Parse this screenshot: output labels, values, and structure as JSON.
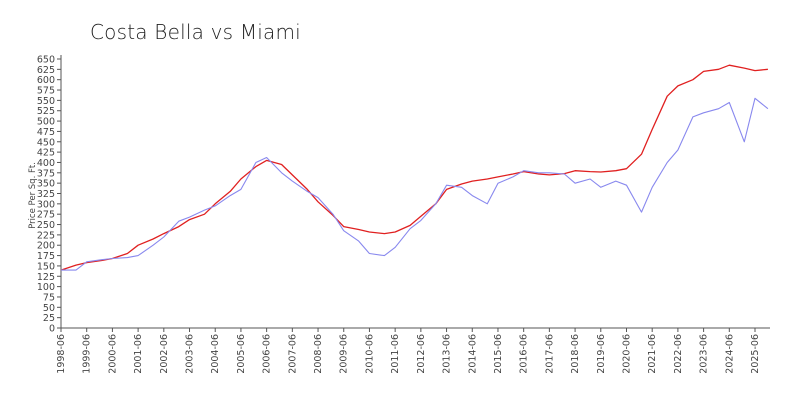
{
  "chart_data": {
    "type": "line",
    "title": "Costa Bella vs Miami",
    "xlabel": "",
    "ylabel": "Price Per Sq. Ft.",
    "ylim": [
      0,
      650
    ],
    "yticks": [
      0,
      25,
      50,
      75,
      100,
      125,
      150,
      175,
      200,
      225,
      250,
      275,
      300,
      325,
      350,
      375,
      400,
      425,
      450,
      475,
      500,
      525,
      550,
      575,
      600,
      625,
      650
    ],
    "xlim": [
      "1998-06",
      "2026-01"
    ],
    "xticks": [
      "1998-06",
      "1999-06",
      "2000-06",
      "2001-06",
      "2002-06",
      "2003-06",
      "2004-06",
      "2005-06",
      "2006-06",
      "2007-06",
      "2008-06",
      "2009-06",
      "2010-06",
      "2011-06",
      "2012-06",
      "2013-06",
      "2014-06",
      "2015-06",
      "2016-06",
      "2017-06",
      "2018-06",
      "2019-06",
      "2020-06",
      "2021-06",
      "2022-06",
      "2023-06",
      "2024-06",
      "2025-06"
    ],
    "grid": false,
    "legend": "none",
    "series": [
      {
        "color": "#e02020",
        "points": [
          [
            "1998-06",
            140
          ],
          [
            "1999-01",
            152
          ],
          [
            "1999-06",
            158
          ],
          [
            "2000-01",
            163
          ],
          [
            "2000-06",
            168
          ],
          [
            "2001-01",
            180
          ],
          [
            "2001-06",
            200
          ],
          [
            "2002-01",
            215
          ],
          [
            "2002-06",
            228
          ],
          [
            "2003-01",
            245
          ],
          [
            "2003-06",
            262
          ],
          [
            "2004-01",
            275
          ],
          [
            "2004-06",
            300
          ],
          [
            "2005-01",
            330
          ],
          [
            "2005-06",
            360
          ],
          [
            "2006-01",
            390
          ],
          [
            "2006-06",
            405
          ],
          [
            "2007-01",
            395
          ],
          [
            "2007-06",
            370
          ],
          [
            "2008-01",
            335
          ],
          [
            "2008-06",
            305
          ],
          [
            "2009-01",
            272
          ],
          [
            "2009-06",
            245
          ],
          [
            "2010-01",
            238
          ],
          [
            "2010-06",
            232
          ],
          [
            "2011-01",
            228
          ],
          [
            "2011-06",
            232
          ],
          [
            "2012-01",
            248
          ],
          [
            "2012-06",
            270
          ],
          [
            "2013-01",
            300
          ],
          [
            "2013-06",
            335
          ],
          [
            "2014-01",
            348
          ],
          [
            "2014-06",
            355
          ],
          [
            "2015-01",
            360
          ],
          [
            "2015-06",
            365
          ],
          [
            "2016-01",
            372
          ],
          [
            "2016-06",
            378
          ],
          [
            "2017-01",
            372
          ],
          [
            "2017-06",
            370
          ],
          [
            "2018-01",
            373
          ],
          [
            "2018-06",
            380
          ],
          [
            "2019-01",
            378
          ],
          [
            "2019-06",
            377
          ],
          [
            "2020-01",
            380
          ],
          [
            "2020-06",
            385
          ],
          [
            "2021-01",
            420
          ],
          [
            "2021-06",
            480
          ],
          [
            "2022-01",
            560
          ],
          [
            "2022-06",
            585
          ],
          [
            "2023-01",
            600
          ],
          [
            "2023-06",
            620
          ],
          [
            "2024-01",
            625
          ],
          [
            "2024-06",
            635
          ],
          [
            "2025-01",
            628
          ],
          [
            "2025-06",
            622
          ],
          [
            "2025-12",
            625
          ]
        ]
      },
      {
        "color": "#8888ee",
        "points": [
          [
            "1998-06",
            140
          ],
          [
            "1999-01",
            140
          ],
          [
            "1999-06",
            160
          ],
          [
            "2000-01",
            165
          ],
          [
            "2000-06",
            168
          ],
          [
            "2001-01",
            170
          ],
          [
            "2001-06",
            175
          ],
          [
            "2002-01",
            200
          ],
          [
            "2002-06",
            220
          ],
          [
            "2003-01",
            258
          ],
          [
            "2003-06",
            268
          ],
          [
            "2004-01",
            285
          ],
          [
            "2004-06",
            295
          ],
          [
            "2005-01",
            320
          ],
          [
            "2005-06",
            335
          ],
          [
            "2006-01",
            400
          ],
          [
            "2006-06",
            412
          ],
          [
            "2007-01",
            375
          ],
          [
            "2007-06",
            355
          ],
          [
            "2008-01",
            330
          ],
          [
            "2008-06",
            315
          ],
          [
            "2009-01",
            275
          ],
          [
            "2009-06",
            235
          ],
          [
            "2010-01",
            210
          ],
          [
            "2010-06",
            180
          ],
          [
            "2011-01",
            175
          ],
          [
            "2011-06",
            195
          ],
          [
            "2012-01",
            240
          ],
          [
            "2012-06",
            260
          ],
          [
            "2013-01",
            300
          ],
          [
            "2013-06",
            345
          ],
          [
            "2014-01",
            340
          ],
          [
            "2014-06",
            320
          ],
          [
            "2015-01",
            300
          ],
          [
            "2015-06",
            350
          ],
          [
            "2016-01",
            365
          ],
          [
            "2016-06",
            380
          ],
          [
            "2017-01",
            375
          ],
          [
            "2017-06",
            375
          ],
          [
            "2018-01",
            372
          ],
          [
            "2018-06",
            350
          ],
          [
            "2019-01",
            360
          ],
          [
            "2019-06",
            340
          ],
          [
            "2020-01",
            355
          ],
          [
            "2020-06",
            345
          ],
          [
            "2021-01",
            280
          ],
          [
            "2021-06",
            340
          ],
          [
            "2022-01",
            400
          ],
          [
            "2022-06",
            430
          ],
          [
            "2023-01",
            510
          ],
          [
            "2023-06",
            520
          ],
          [
            "2024-01",
            530
          ],
          [
            "2024-06",
            545
          ],
          [
            "2025-01",
            450
          ],
          [
            "2025-06",
            555
          ],
          [
            "2025-12",
            530
          ]
        ]
      }
    ]
  }
}
